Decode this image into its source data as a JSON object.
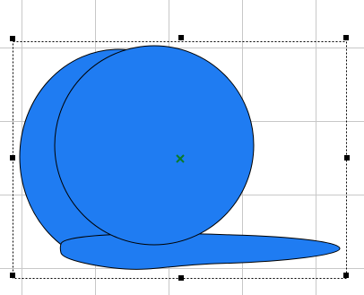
{
  "canvas": {
    "grid_visible": true,
    "grid_color": "#c8c8c8",
    "background_color": "#ffffff"
  },
  "shape": {
    "fill_color": "#1f7cf2",
    "stroke_color": "#000000",
    "selected": true
  },
  "selection": {
    "border_style": "dashed",
    "handle_color": "#000000",
    "center_marker_color": "#0a7a2a",
    "center_marker_icon": "x-icon"
  }
}
